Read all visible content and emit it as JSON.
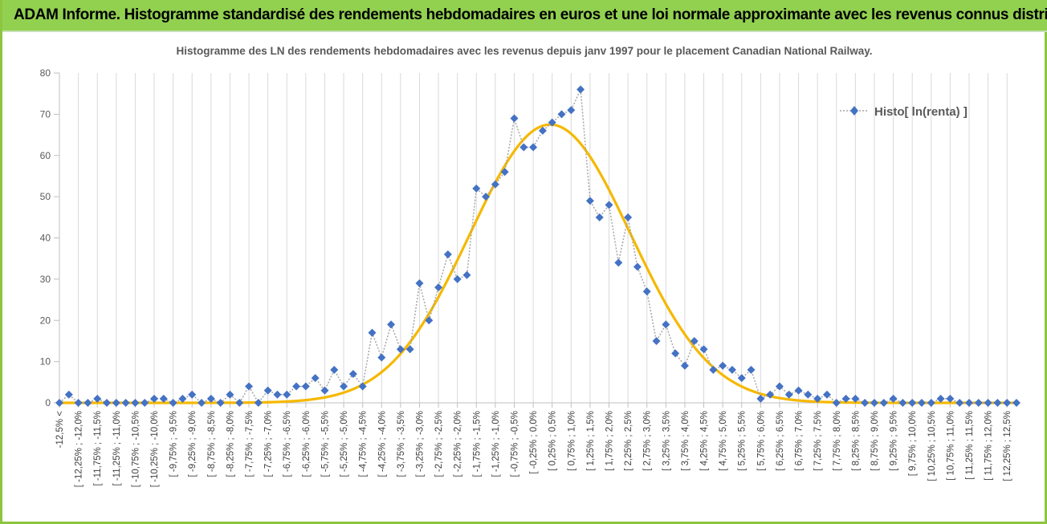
{
  "header": {
    "banner_title": "ADAM Informe. Histogramme standardisé des rendements hebdomadaires en euros et une loi normale approximante avec les revenus connus distribués"
  },
  "colors": {
    "banner": "#92d050",
    "series": "#4472c4",
    "connector": "#a6a6a6",
    "normal_curve": "#f5b800",
    "grid": "#d9d9d9"
  },
  "chart_data": {
    "type": "line",
    "title": "Histogramme des LN des rendements hebdomadaires avec les revenus depuis janv 1997 pour le placement Canadian National Railway.",
    "xlabel": "",
    "ylabel": "",
    "ylim": [
      0,
      80
    ],
    "yticks": [
      0,
      10,
      20,
      30,
      40,
      50,
      60,
      70,
      80
    ],
    "grid": "vertical",
    "legend_position": "top-right",
    "categories": [
      "-12,5% <",
      "[ -12,25% ; -12,0%",
      "[ -11,75% ; -11,5%",
      "[ -11,25% ; -11,0%",
      "[ -10,75% ; -10,5%",
      "[ -10,25% ; -10,0%",
      "[ -9,75% ; -9,5%",
      "[ -9,25% ; -9,0%",
      "[ -8,75% ; -8,5%",
      "[ -8,25% ; -8,0%",
      "[ -7,75% ; -7,5%",
      "[ -7,25% ; -7,0%",
      "[ -6,75% ; -6,5%",
      "[ -6,25% ; -6,0%",
      "[ -5,75% ; -5,5%",
      "[ -5,25% ; -5,0%",
      "[ -4,75% ; -4,5%",
      "[ -4,25% ; -4,0%",
      "[ -3,75% ; -3,5%",
      "[ -3,25% ; -3,0%",
      "[ -2,75% ; -2,5%",
      "[ -2,25% ; -2,0%",
      "[ -1,75% ; -1,5%",
      "[ -1,25% ; -1,0%",
      "[ -0,75% ; -0,5%",
      "[ -0,25% ; 0,0%",
      "[ 0,25% ; 0,5%",
      "[ 0,75% ; 1,0%",
      "[ 1,25% ; 1,5%",
      "[ 1,75% ; 2,0%",
      "[ 2,25% ; 2,5%",
      "[ 2,75% ; 3,0%",
      "[ 3,25% ; 3,5%",
      "[ 3,75% ; 4,0%",
      "[ 4,25% ; 4,5%",
      "[ 4,75% ; 5,0%",
      "[ 5,25% ; 5,5%",
      "[ 5,75% ; 6,0%",
      "[ 6,25% ; 6,5%",
      "[ 6,75% ; 7,0%",
      "[ 7,25% ; 7,5%",
      "[ 7,75% ; 8,0%",
      "[ 8,25% ; 8,5%",
      "[ 8,75% ; 9,0%",
      "[ 9,25% ; 9,5%",
      "[ 9,75% ; 10,0%",
      "[ 10,25% ; 10,5%",
      "[ 10,75% ; 11,0%",
      "[ 11,25% ; 11,5%",
      "[ 11,75% ; 12,0%",
      "[ 12,25% ; 12,5%"
    ],
    "x": [
      -12.75,
      -12.5,
      -12.25,
      -12.0,
      -11.75,
      -11.5,
      -11.25,
      -11.0,
      -10.75,
      -10.5,
      -10.25,
      -10.0,
      -9.75,
      -9.5,
      -9.25,
      -9.0,
      -8.75,
      -8.5,
      -8.25,
      -8.0,
      -7.75,
      -7.5,
      -7.25,
      -7.0,
      -6.75,
      -6.5,
      -6.25,
      -6.0,
      -5.75,
      -5.5,
      -5.25,
      -5.0,
      -4.75,
      -4.5,
      -4.25,
      -4.0,
      -3.75,
      -3.5,
      -3.25,
      -3.0,
      -2.75,
      -2.5,
      -2.25,
      -2.0,
      -1.75,
      -1.5,
      -1.25,
      -1.0,
      -0.75,
      -0.5,
      -0.25,
      0.0,
      0.25,
      0.5,
      0.75,
      1.0,
      1.25,
      1.5,
      1.75,
      2.0,
      2.25,
      2.5,
      2.75,
      3.0,
      3.25,
      3.5,
      3.75,
      4.0,
      4.25,
      4.5,
      4.75,
      5.0,
      5.25,
      5.5,
      5.75,
      6.0,
      6.25,
      6.5,
      6.75,
      7.0,
      7.25,
      7.5,
      7.75,
      8.0,
      8.25,
      8.5,
      8.75,
      9.0,
      9.25,
      9.5,
      9.75,
      10.0,
      10.25,
      10.5,
      10.75,
      11.0,
      11.25,
      11.5,
      11.75,
      12.0,
      12.25,
      12.5
    ],
    "series": [
      {
        "name": "Histo[ ln(renta) ]",
        "style": "markers with dotted connector",
        "values": [
          0,
          2,
          0,
          0,
          1,
          0,
          0,
          0,
          0,
          0,
          1,
          1,
          0,
          1,
          2,
          0,
          1,
          0,
          2,
          0,
          4,
          0,
          3,
          2,
          2,
          4,
          4,
          6,
          3,
          8,
          4,
          7,
          4,
          17,
          11,
          19,
          13,
          13,
          29,
          20,
          28,
          36,
          30,
          31,
          52,
          50,
          53,
          56,
          69,
          62,
          62,
          66,
          68,
          70,
          71,
          76,
          49,
          45,
          48,
          34,
          45,
          33,
          27,
          15,
          19,
          12,
          9,
          15,
          13,
          8,
          9,
          8,
          6,
          8,
          1,
          2,
          4,
          2,
          3,
          2,
          1,
          2,
          0,
          1,
          1,
          0,
          0,
          0,
          1,
          0,
          0,
          0,
          0,
          1,
          1,
          0,
          0,
          0,
          0,
          0,
          0,
          0
        ]
      },
      {
        "name": "",
        "style": "smooth curve (normal approximation)",
        "distribution": {
          "mean": 0.2,
          "std_dev": 2.12,
          "peak": 67.5
        }
      }
    ]
  }
}
